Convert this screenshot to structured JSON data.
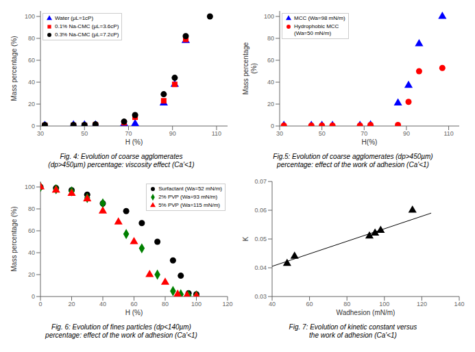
{
  "chart_data": [
    {
      "type": "scatter",
      "title": "Fig. 4: Evolution of coarse agglomerates\n(dp>450µm) percentage: viscosity effect (Ca'<1)",
      "ylabel": "Mass percentage (%)",
      "xlabel": "H (%)",
      "xlim": [
        30,
        115
      ],
      "ylim": [
        0,
        105
      ],
      "xticks": [
        30,
        50,
        70,
        90,
        110
      ],
      "yticks": [
        0,
        20,
        40,
        60,
        80,
        100
      ],
      "grid": false,
      "legend": "upper left",
      "series": [
        {
          "name": "Water (μL=1cP)",
          "color": "blue",
          "marker": "triangle",
          "x": [
            32,
            45,
            50,
            55,
            68,
            73,
            86,
            91,
            96
          ],
          "values": [
            0.5,
            1,
            1,
            1,
            2,
            2,
            21,
            38,
            78
          ]
        },
        {
          "name": "0.1% Na-CMC (μL=3.6cP)",
          "color": "red",
          "marker": "square",
          "x": [
            32,
            45,
            50,
            55,
            68,
            73,
            86,
            91,
            96
          ],
          "values": [
            0.5,
            0.5,
            0.5,
            1,
            3,
            8,
            23,
            38,
            79
          ]
        },
        {
          "name": "0.3% Na-CMC (μL=7.2cP)",
          "color": "black",
          "marker": "circle",
          "x": [
            32,
            45,
            50,
            55,
            68,
            73,
            86,
            91,
            96,
            107
          ],
          "values": [
            1,
            1,
            1,
            1.5,
            4,
            10,
            29,
            44,
            82,
            100
          ]
        }
      ]
    },
    {
      "type": "scatter",
      "title": "Fig.5: Evolution of coarse agglomerates (dp>450µm)\npercentage: effect of the work of adhesion (Ca'<1)",
      "ylabel": "Mass percentage\n(%)",
      "xlabel": "H(%)",
      "xlim": [
        30,
        115
      ],
      "ylim": [
        0,
        105
      ],
      "xticks": [
        30,
        50,
        70,
        90,
        110
      ],
      "yticks": [
        0,
        20,
        40,
        60,
        80,
        100
      ],
      "grid": false,
      "legend": "upper left",
      "series": [
        {
          "name": "MCC  (Wa=98 mN/m)",
          "color": "blue",
          "marker": "triangle",
          "x": [
            32,
            45,
            50,
            55,
            68,
            73,
            86,
            91,
            96,
            107
          ],
          "values": [
            0.5,
            0.5,
            0.5,
            0.5,
            0.5,
            1,
            21,
            37,
            75,
            100
          ]
        },
        {
          "name": "Hydrophobic MCC\n(Wa=50 mN/m)",
          "color": "red",
          "marker": "circle",
          "x": [
            32,
            45,
            50,
            55,
            68,
            73,
            86,
            91,
            96,
            107
          ],
          "values": [
            0.5,
            0.5,
            0.5,
            0.5,
            0.5,
            1,
            1,
            22,
            50,
            53
          ]
        }
      ]
    },
    {
      "type": "scatter",
      "title": "Fig. 6: Evolution of fines particles (dp<140µm)\npercentage: effect of the work of adhesion (Ca'<1)",
      "ylabel": "Mass percentage (%)",
      "xlabel": "H (%)",
      "xlim": [
        0,
        120
      ],
      "ylim": [
        0,
        105
      ],
      "xticks": [
        0,
        20,
        40,
        60,
        80,
        100,
        120
      ],
      "yticks": [
        0,
        20,
        40,
        60,
        80,
        100
      ],
      "grid": false,
      "legend": "upper right",
      "series": [
        {
          "name": "Surfactant (Wa=52 mN/m)",
          "color": "black",
          "marker": "circle",
          "x": [
            0,
            10,
            20,
            30,
            40,
            55,
            65,
            75,
            85,
            90,
            95,
            100
          ],
          "values": [
            100,
            99,
            97,
            93,
            85,
            78,
            67,
            50,
            33,
            19,
            3,
            2
          ]
        },
        {
          "name": "2% PVP (Wa=93 mN/m)",
          "color": "#008000",
          "marker": "diamond",
          "x": [
            0,
            10,
            20,
            30,
            40,
            55,
            65,
            75,
            85,
            90,
            95,
            100
          ],
          "values": [
            100,
            98,
            96,
            90,
            85,
            57,
            44,
            20,
            5,
            2,
            1,
            1
          ]
        },
        {
          "name": "5% PVP (Wa=115 mN/m)",
          "color": "red",
          "marker": "triangle",
          "x": [
            0,
            10,
            20,
            30,
            40,
            50,
            60,
            70,
            80,
            88,
            94,
            100
          ],
          "values": [
            100,
            97,
            94,
            89,
            78,
            68,
            50,
            20,
            13,
            2,
            1,
            0.5
          ]
        }
      ]
    },
    {
      "type": "scatter",
      "title": "Fig. 7: Evolution of kinetic constant versus\nthe work of adhesion (Ca'<1)",
      "ylabel": "K",
      "xlabel": "Wadhesion (mN/m)",
      "xlim": [
        40,
        140
      ],
      "ylim": [
        0.03,
        0.07
      ],
      "xticks": [
        40,
        60,
        80,
        100,
        120,
        140
      ],
      "yticks": [
        0.03,
        0.04,
        0.05,
        0.06,
        0.07
      ],
      "grid": false,
      "series": [
        {
          "type": "scatter",
          "color": "black",
          "marker": "triangle",
          "x": [
            48,
            52,
            92,
            95,
            98,
            115
          ],
          "values": [
            0.0415,
            0.044,
            0.051,
            0.052,
            0.053,
            0.06
          ]
        },
        {
          "type": "line",
          "color": "black",
          "x": [
            40,
            125
          ],
          "values": [
            0.0405,
            0.059
          ]
        }
      ]
    }
  ]
}
